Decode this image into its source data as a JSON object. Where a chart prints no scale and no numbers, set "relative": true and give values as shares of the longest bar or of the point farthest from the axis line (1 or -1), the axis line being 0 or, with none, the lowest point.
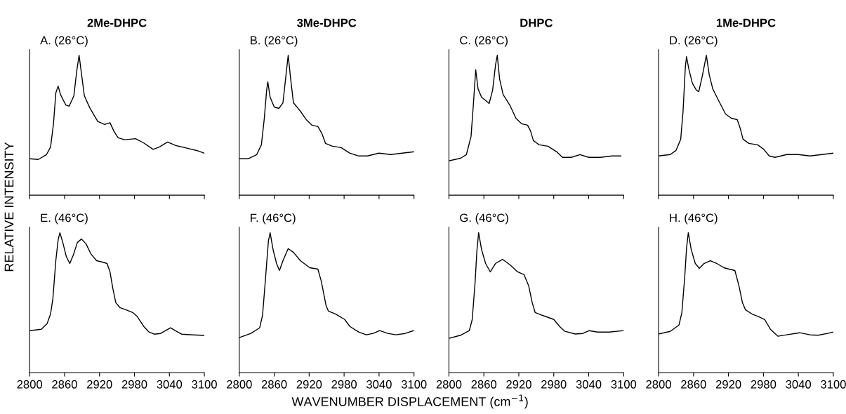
{
  "chart_data": [
    {
      "type": "line",
      "subtitle": "2Me-DHPC",
      "title": "A. (26°C)",
      "ylabel": "RELATIVE INTENSITY",
      "relative": true,
      "xlim": [
        2800,
        3100
      ],
      "xticks": [
        2800,
        2860,
        2920,
        2980,
        3040,
        3100
      ],
      "tick_labels": false,
      "marker": "none",
      "line_style": "solid",
      "grid": false,
      "legend": false,
      "x": [
        2801,
        2815,
        2829,
        2836,
        2841,
        2845,
        2849,
        2853,
        2862,
        2868,
        2876,
        2881,
        2885,
        2889,
        2894,
        2903,
        2917,
        2929,
        2938,
        2945,
        2952,
        2963,
        2982,
        2996,
        3012,
        3023,
        3037,
        3051,
        3070,
        3088,
        3100
      ],
      "series": [
        {
          "color": "#000000",
          "values": [
            0.26,
            0.255,
            0.29,
            0.345,
            0.51,
            0.73,
            0.78,
            0.72,
            0.645,
            0.636,
            0.71,
            0.89,
            1.0,
            0.87,
            0.71,
            0.627,
            0.527,
            0.505,
            0.518,
            0.455,
            0.41,
            0.396,
            0.404,
            0.373,
            0.327,
            0.345,
            0.38,
            0.355,
            0.336,
            0.318,
            0.3
          ]
        }
      ]
    },
    {
      "type": "line",
      "subtitle": "3Me-DHPC",
      "title": "B. (26°C)",
      "relative": true,
      "xlim": [
        2800,
        3100
      ],
      "xticks": [
        2800,
        2860,
        2920,
        2980,
        3040,
        3100
      ],
      "tick_labels": false,
      "marker": "none",
      "line_style": "solid",
      "grid": false,
      "legend": false,
      "x": [
        2800,
        2815,
        2830,
        2838,
        2843,
        2847,
        2849,
        2853,
        2860,
        2868,
        2875,
        2880,
        2884,
        2888,
        2893,
        2905,
        2915,
        2925,
        2935,
        2942,
        2948,
        2960,
        2975,
        2990,
        3005,
        3020,
        3040,
        3060,
        3080,
        3100
      ],
      "series": [
        {
          "color": "#000000",
          "values": [
            0.26,
            0.26,
            0.29,
            0.36,
            0.55,
            0.75,
            0.81,
            0.7,
            0.63,
            0.62,
            0.66,
            0.85,
            1.0,
            0.84,
            0.66,
            0.6,
            0.54,
            0.5,
            0.49,
            0.44,
            0.37,
            0.35,
            0.34,
            0.3,
            0.28,
            0.28,
            0.3,
            0.29,
            0.3,
            0.31
          ]
        }
      ]
    },
    {
      "type": "line",
      "subtitle": "DHPC",
      "title": "C. (26°C)",
      "relative": true,
      "xlim": [
        2800,
        3100
      ],
      "xticks": [
        2800,
        2860,
        2920,
        2980,
        3040,
        3100
      ],
      "tick_labels": false,
      "marker": "none",
      "line_style": "solid",
      "grid": false,
      "legend": false,
      "x": [
        2800,
        2820,
        2830,
        2838,
        2842,
        2846,
        2850,
        2856,
        2865,
        2869,
        2875,
        2880,
        2883,
        2887,
        2893,
        2905,
        2915,
        2925,
        2935,
        2940,
        2945,
        2955,
        2970,
        2985,
        2995,
        3010,
        3025,
        3040,
        3060,
        3080,
        3095
      ],
      "series": [
        {
          "color": "#000000",
          "values": [
            0.245,
            0.264,
            0.29,
            0.42,
            0.65,
            0.896,
            0.76,
            0.7,
            0.67,
            0.655,
            0.75,
            0.93,
            1.0,
            0.83,
            0.72,
            0.64,
            0.55,
            0.51,
            0.5,
            0.46,
            0.39,
            0.36,
            0.35,
            0.31,
            0.27,
            0.27,
            0.29,
            0.27,
            0.27,
            0.28,
            0.28
          ]
        }
      ]
    },
    {
      "type": "line",
      "subtitle": "1Me-DHPC",
      "title": "D. (26°C)",
      "relative": true,
      "xlim": [
        2800,
        3100
      ],
      "xticks": [
        2800,
        2860,
        2920,
        2980,
        3040,
        3100
      ],
      "tick_labels": false,
      "marker": "none",
      "line_style": "solid",
      "grid": false,
      "legend": false,
      "x": [
        2800,
        2820,
        2830,
        2838,
        2842,
        2846,
        2848,
        2852,
        2858,
        2865,
        2869,
        2875,
        2882,
        2887,
        2893,
        2905,
        2915,
        2925,
        2935,
        2940,
        2945,
        2955,
        2970,
        2980,
        2990,
        3000,
        3020,
        3040,
        3060,
        3080,
        3100
      ],
      "series": [
        {
          "color": "#000000",
          "values": [
            0.28,
            0.29,
            0.32,
            0.4,
            0.6,
            0.92,
            0.99,
            0.9,
            0.8,
            0.75,
            0.74,
            0.85,
            1.0,
            0.86,
            0.76,
            0.66,
            0.58,
            0.55,
            0.54,
            0.48,
            0.4,
            0.37,
            0.36,
            0.33,
            0.28,
            0.27,
            0.29,
            0.29,
            0.28,
            0.29,
            0.3
          ]
        }
      ]
    },
    {
      "type": "line",
      "title": "E. (46°C)",
      "relative": true,
      "xlim": [
        2800,
        3100
      ],
      "xticks": [
        2800,
        2860,
        2920,
        2980,
        3040,
        3100
      ],
      "tick_labels": "x",
      "marker": "none",
      "line_style": "solid",
      "grid": false,
      "legend": false,
      "x": [
        2800,
        2820,
        2830,
        2836,
        2840,
        2845,
        2849,
        2852,
        2857,
        2863,
        2869,
        2875,
        2882,
        2889,
        2897,
        2905,
        2915,
        2925,
        2933,
        2938,
        2943,
        2948,
        2955,
        2965,
        2977,
        2985,
        2996,
        3005,
        3014,
        3025,
        3042,
        3050,
        3061,
        3080,
        3100
      ],
      "series": [
        {
          "color": "#000000",
          "values": [
            0.3,
            0.31,
            0.35,
            0.42,
            0.53,
            0.8,
            0.95,
            1.0,
            0.93,
            0.83,
            0.78,
            0.84,
            0.93,
            0.955,
            0.92,
            0.85,
            0.8,
            0.79,
            0.78,
            0.72,
            0.6,
            0.5,
            0.465,
            0.45,
            0.43,
            0.4,
            0.33,
            0.29,
            0.275,
            0.28,
            0.32,
            0.3,
            0.275,
            0.27,
            0.266
          ]
        }
      ]
    },
    {
      "type": "line",
      "title": "F. (46°C)",
      "xlabel": "WAVENUMBER DISPLACEMENT (cm$^{−1}$)",
      "relative": true,
      "xlim": [
        2800,
        3100
      ],
      "xticks": [
        2800,
        2860,
        2920,
        2980,
        3040,
        3100
      ],
      "tick_labels": "x",
      "marker": "none",
      "line_style": "solid",
      "grid": false,
      "legend": false,
      "x": [
        2800,
        2820,
        2835,
        2840,
        2845,
        2850,
        2853,
        2858,
        2864,
        2869,
        2875,
        2884,
        2893,
        2905,
        2921,
        2935,
        2941,
        2949,
        2953,
        2965,
        2981,
        2990,
        3005,
        3018,
        3030,
        3041,
        3055,
        3069,
        3085,
        3099
      ],
      "series": [
        {
          "color": "#000000",
          "values": [
            0.25,
            0.28,
            0.32,
            0.41,
            0.67,
            0.94,
            1.0,
            0.88,
            0.78,
            0.73,
            0.8,
            0.887,
            0.86,
            0.8,
            0.75,
            0.74,
            0.65,
            0.48,
            0.44,
            0.42,
            0.38,
            0.33,
            0.29,
            0.27,
            0.28,
            0.3,
            0.28,
            0.27,
            0.28,
            0.3
          ]
        }
      ]
    },
    {
      "type": "line",
      "title": "G. (46°C)",
      "relative": true,
      "xlim": [
        2800,
        3100
      ],
      "xticks": [
        2800,
        2860,
        2920,
        2980,
        3040,
        3100
      ],
      "tick_labels": "x",
      "marker": "none",
      "line_style": "solid",
      "grid": false,
      "legend": false,
      "x": [
        2800,
        2820,
        2835,
        2840,
        2845,
        2848,
        2851,
        2856,
        2863,
        2871,
        2880,
        2892,
        2905,
        2918,
        2929,
        2937,
        2943,
        2948,
        2960,
        2980,
        2990,
        2999,
        3017,
        3030,
        3041,
        3055,
        3075,
        3100
      ],
      "series": [
        {
          "color": "#000000",
          "values": [
            0.245,
            0.267,
            0.3,
            0.38,
            0.65,
            0.87,
            1.0,
            0.88,
            0.78,
            0.72,
            0.78,
            0.81,
            0.77,
            0.72,
            0.7,
            0.62,
            0.5,
            0.43,
            0.41,
            0.38,
            0.33,
            0.295,
            0.276,
            0.28,
            0.3,
            0.29,
            0.29,
            0.3
          ]
        }
      ]
    },
    {
      "type": "line",
      "title": "H. (46°C)",
      "relative": true,
      "xlim": [
        2800,
        3100
      ],
      "xticks": [
        2800,
        2860,
        2920,
        2980,
        3040,
        3100
      ],
      "tick_labels": "x",
      "marker": "none",
      "line_style": "solid",
      "grid": false,
      "legend": false,
      "x": [
        2800,
        2820,
        2835,
        2840,
        2845,
        2848,
        2851,
        2856,
        2863,
        2870,
        2878,
        2889,
        2900,
        2912,
        2921,
        2931,
        2938,
        2944,
        2949,
        2960,
        2972,
        2982,
        2992,
        3005,
        3020,
        3042,
        3060,
        3074,
        3090,
        3100
      ],
      "series": [
        {
          "color": "#000000",
          "values": [
            0.276,
            0.295,
            0.34,
            0.43,
            0.69,
            0.89,
            1.0,
            0.88,
            0.78,
            0.745,
            0.78,
            0.8,
            0.78,
            0.75,
            0.74,
            0.73,
            0.62,
            0.5,
            0.45,
            0.42,
            0.4,
            0.38,
            0.31,
            0.26,
            0.27,
            0.285,
            0.27,
            0.267,
            0.28,
            0.29
          ]
        }
      ]
    }
  ]
}
